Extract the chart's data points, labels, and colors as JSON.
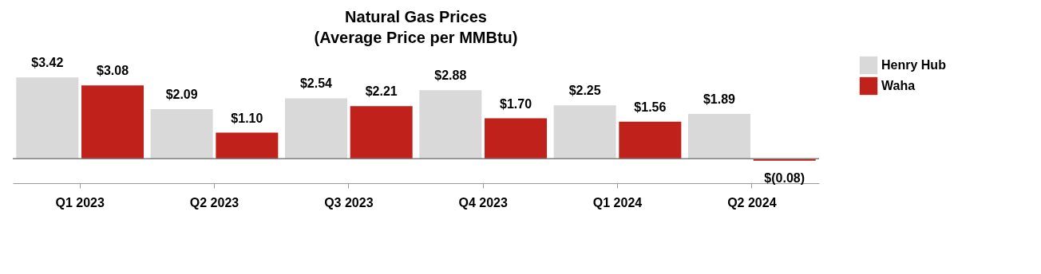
{
  "chart_data": {
    "type": "bar",
    "title": [
      "Natural Gas Prices",
      "(Average Price per MMBtu)"
    ],
    "categories": [
      "Q1 2023",
      "Q2 2023",
      "Q3 2023",
      "Q4 2023",
      "Q1 2024",
      "Q2 2024"
    ],
    "series": [
      {
        "name": "Henry Hub",
        "color": "#d9d9d9",
        "values": [
          3.42,
          2.09,
          2.54,
          2.88,
          2.25,
          1.89
        ],
        "value_labels": [
          "$3.42",
          "$2.09",
          "$2.54",
          "$2.88",
          "$2.25",
          "$1.89"
        ]
      },
      {
        "name": "Waha",
        "color": "#c0211a",
        "values": [
          3.08,
          1.1,
          2.21,
          1.7,
          1.56,
          -0.08
        ],
        "value_labels": [
          "$3.08",
          "$1.10",
          "$2.21",
          "$1.70",
          "$1.56",
          "$(0.08)"
        ]
      }
    ],
    "ref_lines": [
      {
        "axis": "y",
        "value": 0,
        "color": "#808080"
      }
    ],
    "legend": "right",
    "grid": false,
    "tick_labels": "x"
  }
}
